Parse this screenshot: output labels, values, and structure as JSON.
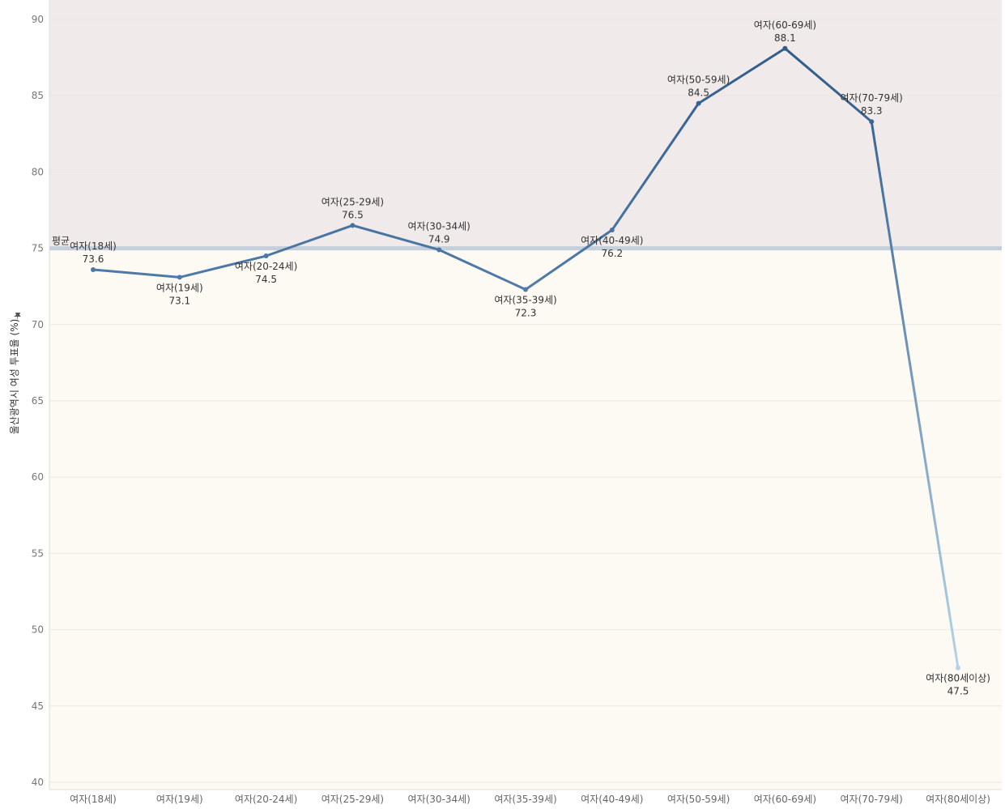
{
  "chart_data": {
    "type": "line",
    "ylabel": "울산광역시 여성 투표율 (%)",
    "ylim": [
      40,
      90
    ],
    "yticks": [
      40,
      45,
      50,
      55,
      60,
      65,
      70,
      75,
      80,
      85,
      90
    ],
    "categories": [
      "여자(18세)",
      "여자(19세)",
      "여자(20-24세)",
      "여자(25-29세)",
      "여자(30-34세)",
      "여자(35-39세)",
      "여자(40-49세)",
      "여자(50-59세)",
      "여자(60-69세)",
      "여자(70-79세)",
      "여자(80세이상)"
    ],
    "series": [
      {
        "values": [
          73.6,
          73.1,
          74.5,
          76.5,
          74.9,
          72.3,
          76.2,
          84.5,
          88.1,
          83.3,
          47.5
        ]
      }
    ],
    "reference_line": {
      "label": "평균",
      "value": 75.0,
      "color": "#c4cfdb"
    },
    "band_colors": {
      "above": "#f0ebea",
      "below": "#fdf9f3"
    },
    "line_colors": {
      "dark": "#315c8c",
      "mid": "#4e7aa8",
      "light": "#b5d4e8"
    },
    "grid": true,
    "legend": "none",
    "ylabel_icon": "pin-icon"
  }
}
